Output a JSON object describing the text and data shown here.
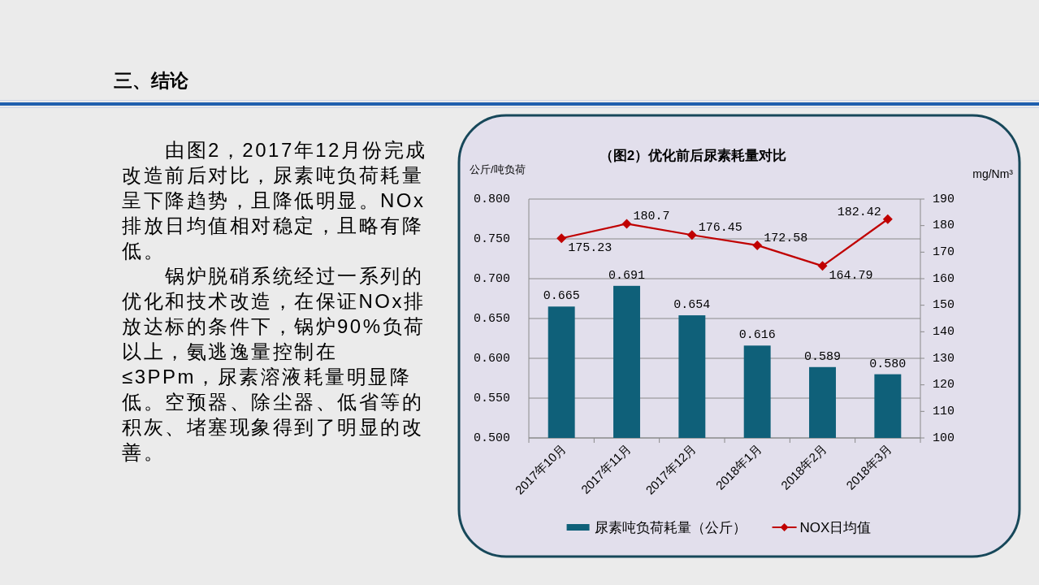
{
  "chart_data": [
    {
      "type": "other",
      "title": "三、结论",
      "annotations": [
        "由图2，2017年12月份完成改造前后对比，尿素吨负荷耗量呈下降趋势，且降低明显。NOx排放日均值相对稳定，且略有降低。",
        "锅炉脱硝系统经过一系列的优化和技术改造，在保证NOx排放达标的条件下，锅炉90%负荷以上，氨逃逸量控制在≤3PPm，尿素溶液耗量明显降低。空预器、除尘器、低省等的积灰、堵塞现象得到了明显的改善。"
      ]
    },
    {
      "type": "bar",
      "title": "（图2）优化前后尿素耗量对比",
      "ylabel": "公斤/吨负荷",
      "y2label": "mg/Nm³",
      "categories": [
        "2017年10月",
        "2017年11月",
        "2017年12月",
        "2018年1月",
        "2018年2月",
        "2018年3月"
      ],
      "series": [
        {
          "name": "尿素吨负荷耗量（公斤）",
          "type": "bar",
          "color": "#0f6079",
          "values": [
            0.665,
            0.691,
            0.654,
            0.616,
            0.589,
            0.58
          ],
          "value_labels": [
            "0.665",
            "0.691",
            "0.654",
            "0.616",
            "0.589",
            "0.580"
          ]
        },
        {
          "name": "NOX日均值",
          "type": "line",
          "axis": "y2",
          "color": "#c00000",
          "marker": "diamond",
          "values": [
            175.23,
            180.7,
            176.45,
            172.58,
            164.79,
            182.42
          ],
          "value_labels": [
            "175.23",
            "180.7",
            "176.45",
            "172.58",
            "164.79",
            "182.42"
          ]
        }
      ],
      "ylim": [
        0.5,
        0.8
      ],
      "yticks": [
        {
          "value": 0.5,
          "label": "0.500"
        },
        {
          "value": 0.55,
          "label": "0.550"
        },
        {
          "value": 0.6,
          "label": "0.600"
        },
        {
          "value": 0.65,
          "label": "0.650"
        },
        {
          "value": 0.7,
          "label": "0.700"
        },
        {
          "value": 0.75,
          "label": "0.750"
        },
        {
          "value": 0.8,
          "label": "0.800"
        }
      ],
      "y2lim": [
        100,
        190
      ],
      "y2ticks": [
        100,
        110,
        120,
        130,
        140,
        150,
        160,
        170,
        180,
        190
      ],
      "grid": "y",
      "legend": "bottom"
    }
  ]
}
